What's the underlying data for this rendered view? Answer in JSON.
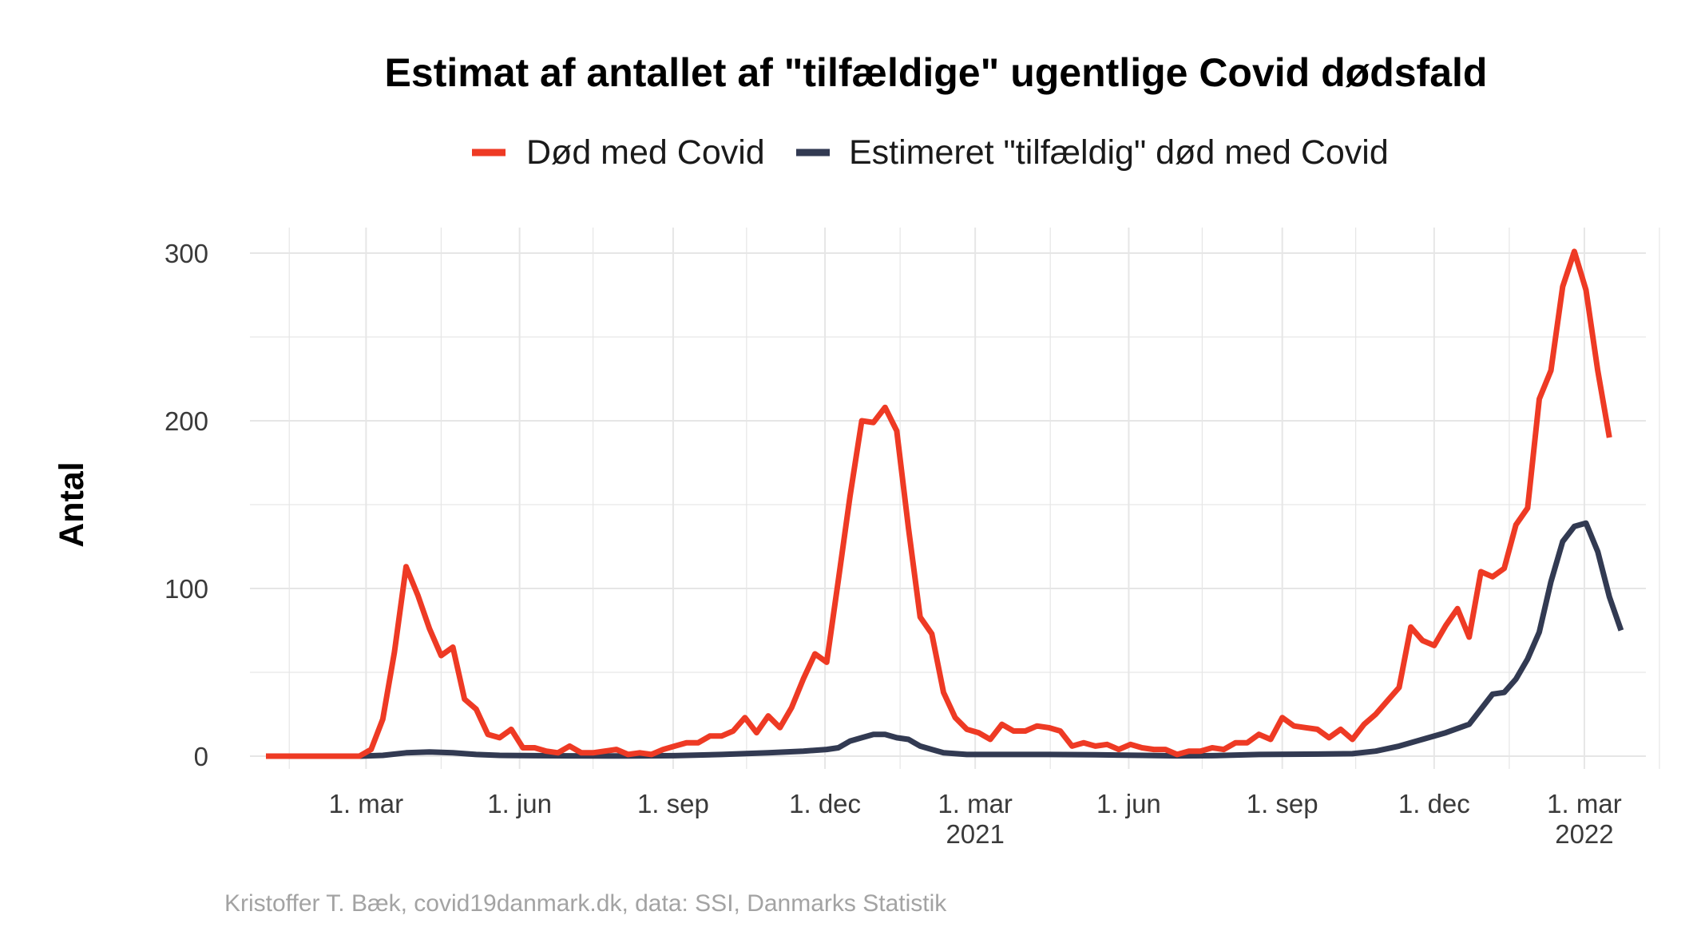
{
  "chart_data": {
    "type": "line",
    "title": "Estimat af antallet af \"tilfældige\" ugentlige Covid dødsfald",
    "ylabel": "Antal",
    "xlabel": "",
    "caption": "Kristoffer T. Bæk, covid19danmark.dk, data: SSI, Danmarks Statistik",
    "ylim": [
      -10,
      310
    ],
    "y_ticks": [
      0,
      100,
      200,
      300
    ],
    "x_range": [
      "2020-01-01",
      "2022-03-24"
    ],
    "x_ticks": [
      {
        "date": "2020-03-01",
        "label": "1. mar",
        "year": ""
      },
      {
        "date": "2020-06-01",
        "label": "1. jun",
        "year": ""
      },
      {
        "date": "2020-09-01",
        "label": "1. sep",
        "year": ""
      },
      {
        "date": "2020-12-01",
        "label": "1. dec",
        "year": ""
      },
      {
        "date": "2021-03-01",
        "label": "1. mar",
        "year": "2021"
      },
      {
        "date": "2021-06-01",
        "label": "1. jun",
        "year": ""
      },
      {
        "date": "2021-09-01",
        "label": "1. sep",
        "year": ""
      },
      {
        "date": "2021-12-01",
        "label": "1. dec",
        "year": ""
      },
      {
        "date": "2022-03-01",
        "label": "1. mar",
        "year": "2022"
      }
    ],
    "minor_x_ticks": [
      "2020-01-15",
      "2020-04-15",
      "2020-07-15",
      "2020-10-15",
      "2021-01-15",
      "2021-04-15",
      "2021-07-15",
      "2021-10-15",
      "2022-01-15",
      "2022-04-15"
    ],
    "grid": true,
    "legend_position": "top",
    "series": [
      {
        "name": "Død med Covid",
        "color": "#ee3a24",
        "points": [
          [
            "2020-01-01",
            0
          ],
          [
            "2020-01-08",
            0
          ],
          [
            "2020-01-15",
            0
          ],
          [
            "2020-01-22",
            0
          ],
          [
            "2020-01-29",
            0
          ],
          [
            "2020-02-05",
            0
          ],
          [
            "2020-02-12",
            0
          ],
          [
            "2020-02-19",
            0
          ],
          [
            "2020-02-26",
            0
          ],
          [
            "2020-03-04",
            4
          ],
          [
            "2020-03-11",
            22
          ],
          [
            "2020-03-18",
            62
          ],
          [
            "2020-03-25",
            113
          ],
          [
            "2020-04-01",
            96
          ],
          [
            "2020-04-08",
            76
          ],
          [
            "2020-04-15",
            60
          ],
          [
            "2020-04-22",
            65
          ],
          [
            "2020-04-29",
            34
          ],
          [
            "2020-05-06",
            28
          ],
          [
            "2020-05-13",
            13
          ],
          [
            "2020-05-20",
            11
          ],
          [
            "2020-05-27",
            16
          ],
          [
            "2020-06-03",
            5
          ],
          [
            "2020-06-10",
            5
          ],
          [
            "2020-06-17",
            3
          ],
          [
            "2020-06-24",
            2
          ],
          [
            "2020-07-01",
            6
          ],
          [
            "2020-07-08",
            2
          ],
          [
            "2020-07-15",
            2
          ],
          [
            "2020-07-22",
            3
          ],
          [
            "2020-07-29",
            4
          ],
          [
            "2020-08-05",
            1
          ],
          [
            "2020-08-12",
            2
          ],
          [
            "2020-08-19",
            1
          ],
          [
            "2020-08-26",
            4
          ],
          [
            "2020-09-02",
            6
          ],
          [
            "2020-09-09",
            8
          ],
          [
            "2020-09-16",
            8
          ],
          [
            "2020-09-23",
            12
          ],
          [
            "2020-09-30",
            12
          ],
          [
            "2020-10-07",
            15
          ],
          [
            "2020-10-14",
            23
          ],
          [
            "2020-10-21",
            14
          ],
          [
            "2020-10-28",
            24
          ],
          [
            "2020-11-04",
            17
          ],
          [
            "2020-11-11",
            29
          ],
          [
            "2020-11-18",
            46
          ],
          [
            "2020-11-25",
            61
          ],
          [
            "2020-12-02",
            56
          ],
          [
            "2020-12-09",
            105
          ],
          [
            "2020-12-16",
            155
          ],
          [
            "2020-12-23",
            200
          ],
          [
            "2020-12-30",
            199
          ],
          [
            "2021-01-06",
            208
          ],
          [
            "2021-01-13",
            194
          ],
          [
            "2021-01-20",
            136
          ],
          [
            "2021-01-27",
            83
          ],
          [
            "2021-02-03",
            73
          ],
          [
            "2021-02-10",
            38
          ],
          [
            "2021-02-17",
            23
          ],
          [
            "2021-02-24",
            16
          ],
          [
            "2021-03-03",
            14
          ],
          [
            "2021-03-10",
            10
          ],
          [
            "2021-03-17",
            19
          ],
          [
            "2021-03-24",
            15
          ],
          [
            "2021-03-31",
            15
          ],
          [
            "2021-04-07",
            18
          ],
          [
            "2021-04-14",
            17
          ],
          [
            "2021-04-21",
            15
          ],
          [
            "2021-04-28",
            6
          ],
          [
            "2021-05-05",
            8
          ],
          [
            "2021-05-12",
            6
          ],
          [
            "2021-05-19",
            7
          ],
          [
            "2021-05-26",
            4
          ],
          [
            "2021-06-02",
            7
          ],
          [
            "2021-06-09",
            5
          ],
          [
            "2021-06-16",
            4
          ],
          [
            "2021-06-23",
            4
          ],
          [
            "2021-06-30",
            1
          ],
          [
            "2021-07-07",
            3
          ],
          [
            "2021-07-14",
            3
          ],
          [
            "2021-07-21",
            5
          ],
          [
            "2021-07-28",
            4
          ],
          [
            "2021-08-04",
            8
          ],
          [
            "2021-08-11",
            8
          ],
          [
            "2021-08-18",
            13
          ],
          [
            "2021-08-25",
            10
          ],
          [
            "2021-09-01",
            23
          ],
          [
            "2021-09-08",
            18
          ],
          [
            "2021-09-15",
            17
          ],
          [
            "2021-09-22",
            16
          ],
          [
            "2021-09-29",
            11
          ],
          [
            "2021-10-06",
            16
          ],
          [
            "2021-10-13",
            10
          ],
          [
            "2021-10-20",
            19
          ],
          [
            "2021-10-27",
            25
          ],
          [
            "2021-11-03",
            33
          ],
          [
            "2021-11-10",
            41
          ],
          [
            "2021-11-17",
            77
          ],
          [
            "2021-11-24",
            69
          ],
          [
            "2021-12-01",
            66
          ],
          [
            "2021-12-08",
            78
          ],
          [
            "2021-12-15",
            88
          ],
          [
            "2021-12-22",
            71
          ],
          [
            "2021-12-29",
            110
          ],
          [
            "2022-01-05",
            107
          ],
          [
            "2022-01-12",
            112
          ],
          [
            "2022-01-19",
            138
          ],
          [
            "2022-01-26",
            148
          ],
          [
            "2022-02-02",
            213
          ],
          [
            "2022-02-09",
            230
          ],
          [
            "2022-02-16",
            280
          ],
          [
            "2022-02-23",
            301
          ],
          [
            "2022-03-02",
            278
          ],
          [
            "2022-03-09",
            230
          ],
          [
            "2022-03-16",
            190
          ]
        ]
      },
      {
        "name": "Estimeret \"tilfældig\" død med Covid",
        "color": "#323a52",
        "points": [
          [
            "2020-01-01",
            0
          ],
          [
            "2020-01-15",
            0
          ],
          [
            "2020-01-29",
            0
          ],
          [
            "2020-02-12",
            0
          ],
          [
            "2020-02-26",
            0
          ],
          [
            "2020-03-11",
            0.5
          ],
          [
            "2020-03-25",
            2
          ],
          [
            "2020-04-08",
            2.5
          ],
          [
            "2020-04-22",
            2
          ],
          [
            "2020-05-06",
            1
          ],
          [
            "2020-05-20",
            0.5
          ],
          [
            "2020-06-10",
            0.3
          ],
          [
            "2020-07-01",
            0.2
          ],
          [
            "2020-08-05",
            0.1
          ],
          [
            "2020-09-02",
            0.3
          ],
          [
            "2020-09-30",
            1
          ],
          [
            "2020-10-28",
            2
          ],
          [
            "2020-11-18",
            3
          ],
          [
            "2020-12-02",
            4
          ],
          [
            "2020-12-09",
            5
          ],
          [
            "2020-12-16",
            9
          ],
          [
            "2020-12-23",
            11
          ],
          [
            "2020-12-30",
            13
          ],
          [
            "2021-01-06",
            13
          ],
          [
            "2021-01-13",
            11
          ],
          [
            "2021-01-20",
            10
          ],
          [
            "2021-01-27",
            6
          ],
          [
            "2021-02-03",
            4
          ],
          [
            "2021-02-10",
            2
          ],
          [
            "2021-02-24",
            1
          ],
          [
            "2021-03-17",
            1
          ],
          [
            "2021-04-14",
            1
          ],
          [
            "2021-05-12",
            0.8
          ],
          [
            "2021-06-09",
            0.5
          ],
          [
            "2021-06-30",
            0.2
          ],
          [
            "2021-07-21",
            0.3
          ],
          [
            "2021-08-18",
            1
          ],
          [
            "2021-09-15",
            1.2
          ],
          [
            "2021-10-13",
            1.5
          ],
          [
            "2021-10-27",
            3
          ],
          [
            "2021-11-10",
            6
          ],
          [
            "2021-11-24",
            10
          ],
          [
            "2021-12-08",
            14
          ],
          [
            "2021-12-22",
            19
          ],
          [
            "2021-12-29",
            28
          ],
          [
            "2022-01-05",
            37
          ],
          [
            "2022-01-12",
            38
          ],
          [
            "2022-01-19",
            46
          ],
          [
            "2022-01-26",
            58
          ],
          [
            "2022-02-02",
            74
          ],
          [
            "2022-02-09",
            104
          ],
          [
            "2022-02-16",
            128
          ],
          [
            "2022-02-23",
            137
          ],
          [
            "2022-03-02",
            139
          ],
          [
            "2022-03-09",
            122
          ],
          [
            "2022-03-16",
            95
          ],
          [
            "2022-03-23",
            75
          ]
        ]
      }
    ]
  }
}
